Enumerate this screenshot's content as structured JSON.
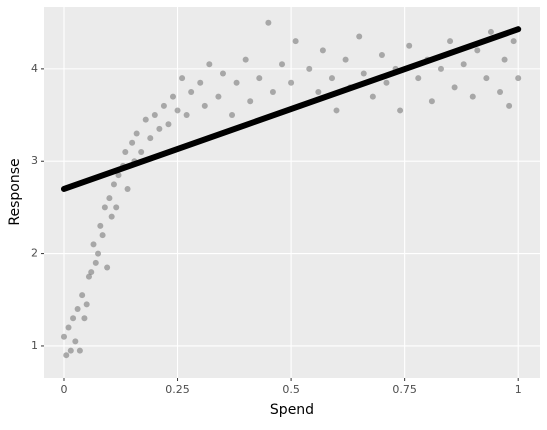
{
  "chart_data": {
    "type": "scatter",
    "x_label": "Spend",
    "y_label": "Response",
    "xlim": [
      -0.044,
      1.048
    ],
    "ylim": [
      0.653,
      4.67
    ],
    "xticks": [
      0,
      0.25,
      0.5,
      0.75,
      1
    ],
    "yticks": [
      1,
      2,
      3,
      4
    ],
    "grid": true,
    "series": [
      {
        "type": "scatter",
        "color": "#7a7a7a",
        "x": [
          0.0,
          0.005,
          0.01,
          0.015,
          0.02,
          0.025,
          0.03,
          0.035,
          0.04,
          0.045,
          0.05,
          0.055,
          0.06,
          0.065,
          0.07,
          0.075,
          0.08,
          0.085,
          0.09,
          0.095,
          0.1,
          0.105,
          0.11,
          0.115,
          0.12,
          0.13,
          0.135,
          0.14,
          0.15,
          0.155,
          0.16,
          0.17,
          0.18,
          0.19,
          0.2,
          0.21,
          0.22,
          0.23,
          0.24,
          0.25,
          0.26,
          0.27,
          0.28,
          0.3,
          0.31,
          0.32,
          0.34,
          0.35,
          0.37,
          0.38,
          0.4,
          0.41,
          0.43,
          0.45,
          0.46,
          0.48,
          0.5,
          0.51,
          0.52,
          0.54,
          0.56,
          0.57,
          0.59,
          0.6,
          0.62,
          0.63,
          0.65,
          0.66,
          0.68,
          0.7,
          0.71,
          0.73,
          0.74,
          0.76,
          0.78,
          0.8,
          0.81,
          0.83,
          0.85,
          0.86,
          0.88,
          0.9,
          0.91,
          0.93,
          0.94,
          0.96,
          0.97,
          0.98,
          0.99,
          1.0
        ],
        "values": [
          1.1,
          0.9,
          1.2,
          0.95,
          1.3,
          1.05,
          1.4,
          0.95,
          1.55,
          1.3,
          1.45,
          1.75,
          1.8,
          2.1,
          1.9,
          2.0,
          2.3,
          2.2,
          2.5,
          1.85,
          2.6,
          2.4,
          2.75,
          2.5,
          2.85,
          2.95,
          3.1,
          2.7,
          3.2,
          3.0,
          3.3,
          3.1,
          3.45,
          3.25,
          3.5,
          3.35,
          3.6,
          3.4,
          3.7,
          3.55,
          3.9,
          3.5,
          3.75,
          3.85,
          3.6,
          4.05,
          3.7,
          3.95,
          3.5,
          3.85,
          4.1,
          3.65,
          3.9,
          4.5,
          3.75,
          4.05,
          3.85,
          4.3,
          3.6,
          4.0,
          3.75,
          4.2,
          3.9,
          3.55,
          4.1,
          3.8,
          4.35,
          3.95,
          3.7,
          4.15,
          3.85,
          4.0,
          3.55,
          4.25,
          3.9,
          4.1,
          3.65,
          4.0,
          4.3,
          3.8,
          4.05,
          3.7,
          4.2,
          3.9,
          4.4,
          3.75,
          4.1,
          3.6,
          4.3,
          3.9
        ]
      },
      {
        "type": "line",
        "color": "#000000",
        "x": [
          0,
          1
        ],
        "values": [
          2.7,
          4.43
        ]
      }
    ]
  }
}
